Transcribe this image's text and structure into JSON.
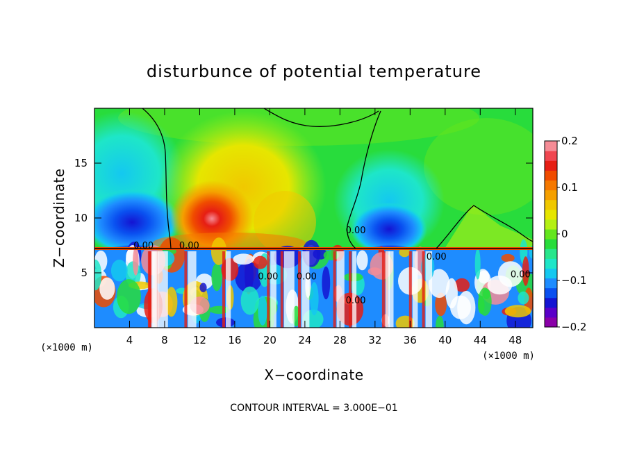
{
  "chart_data": {
    "type": "heatmap",
    "title": "disturbunce of potential temperature",
    "xlabel": "X−coordinate",
    "ylabel": "Z−coordinate",
    "x_unit_label": "(×1000 m)",
    "x_unit_label_right": "(×1000 m)",
    "footer": "CONTOUR INTERVAL = 3.000E−01",
    "xlim": [
      0,
      50
    ],
    "ylim": [
      0,
      20
    ],
    "x_ticks": [
      4,
      8,
      12,
      16,
      20,
      24,
      28,
      32,
      36,
      40,
      44,
      48
    ],
    "x_tick_labels": [
      "4",
      "8",
      "12",
      "16",
      "20",
      "24",
      "28",
      "32",
      "36",
      "40",
      "44",
      "48"
    ],
    "y_ticks": [
      5,
      10,
      15
    ],
    "y_tick_labels": [
      "5",
      "10",
      "15"
    ],
    "colorbar": {
      "range": [
        -0.2,
        0.2
      ],
      "tick_values": [
        0.2,
        0.1,
        0,
        -0.1,
        -0.2
      ],
      "tick_labels": [
        "0.2",
        "0.1",
        "0",
        "−0.1",
        "−0.2"
      ],
      "colors": [
        "#8a00a8",
        "#5a00c8",
        "#1414d2",
        "#0a50f0",
        "#1e8cff",
        "#14c8f0",
        "#1ee6c8",
        "#28e68c",
        "#28dc3c",
        "#64e61e",
        "#b4f014",
        "#e6e600",
        "#f0c800",
        "#f5a000",
        "#f57800",
        "#f04b00",
        "#e61e14",
        "#f04650",
        "#f58c96"
      ]
    },
    "contour_labels": [
      {
        "text": "0.00",
        "x": 5.6,
        "z": 7.2
      },
      {
        "text": "0.00",
        "x": 10.8,
        "z": 7.2
      },
      {
        "text": "0.00",
        "x": 19.8,
        "z": 4.4
      },
      {
        "text": "0.00",
        "x": 24.2,
        "z": 4.4
      },
      {
        "text": "0.00",
        "x": 29.8,
        "z": 8.6
      },
      {
        "text": "0.00",
        "x": 29.8,
        "z": 2.2
      },
      {
        "text": "0.00",
        "x": 39.0,
        "z": 6.2
      },
      {
        "text": "0.00",
        "x": 48.6,
        "z": 4.6
      }
    ],
    "regions": [
      {
        "label": "positive",
        "x": 14,
        "z": 10,
        "level": 0.17
      },
      {
        "label": "positive",
        "x": 22,
        "z": 12,
        "level": 0.11
      },
      {
        "label": "negative",
        "x": 5,
        "z": 9.5,
        "level": -0.17
      },
      {
        "label": "negative",
        "x": 33.5,
        "z": 9.5,
        "level": -0.16
      },
      {
        "label": "near-zero",
        "x": 28,
        "z": 18,
        "level": 0.0
      }
    ]
  }
}
